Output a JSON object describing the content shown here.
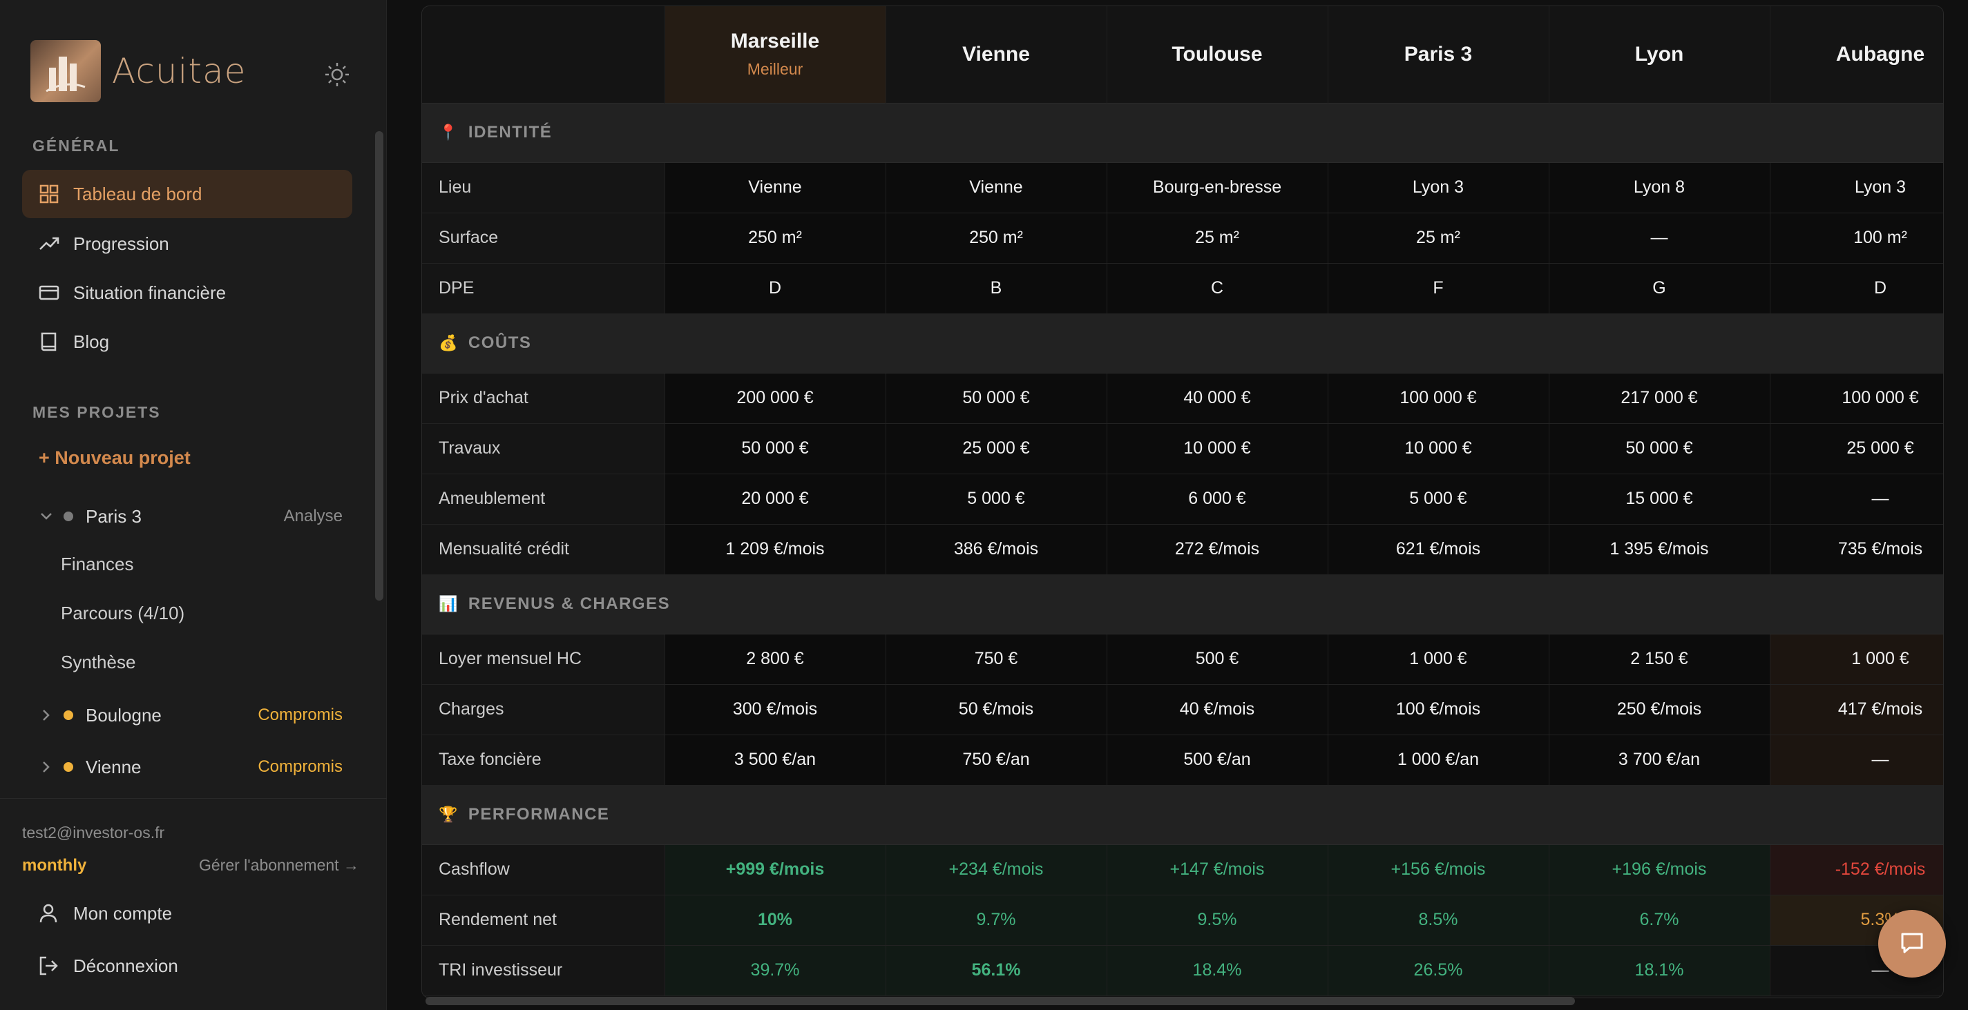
{
  "brand": {
    "name": "Acuitae"
  },
  "sidebar": {
    "general_title": "GÉNÉRAL",
    "nav": [
      {
        "label": "Tableau de bord",
        "icon": "grid-icon",
        "active": true
      },
      {
        "label": "Progression",
        "icon": "trending-up-icon"
      },
      {
        "label": "Situation financière",
        "icon": "credit-card-icon"
      },
      {
        "label": "Blog",
        "icon": "book-icon"
      }
    ],
    "projects_title": "MES PROJETS",
    "new_project": "+ Nouveau projet",
    "projects": [
      {
        "name": "Paris 3",
        "status": "Analyse",
        "dot": "#7a7a7a",
        "status_color": "#8d8d8d",
        "expanded": true,
        "sub": [
          "Finances",
          "Parcours (4/10)",
          "Synthèse"
        ]
      },
      {
        "name": "Boulogne",
        "status": "Compromis",
        "dot": "#f0b23b",
        "status_color": "#f0b23b"
      },
      {
        "name": "Vienne",
        "status": "Compromis",
        "dot": "#f0b23b",
        "status_color": "#f0b23b"
      }
    ],
    "email": "test2@investor-os.fr",
    "plan": "monthly",
    "manage": "Gérer l'abonnement →",
    "account": "Mon compte",
    "logout": "Déconnexion"
  },
  "table": {
    "columns": [
      {
        "name": "Marseille",
        "tag": "Meilleur"
      },
      {
        "name": "Vienne"
      },
      {
        "name": "Toulouse"
      },
      {
        "name": "Paris 3"
      },
      {
        "name": "Lyon"
      },
      {
        "name": "Aubagne"
      }
    ],
    "sections": [
      {
        "emoji": "📍",
        "title": "IDENTITÉ",
        "rows": [
          {
            "label": "Lieu",
            "values": [
              "Vienne",
              "Vienne",
              "Bourg-en-bresse",
              "Lyon 3",
              "Lyon 8",
              "Lyon 3"
            ]
          },
          {
            "label": "Surface",
            "values": [
              "250 m²",
              "250 m²",
              "25 m²",
              "25 m²",
              "—",
              "100 m²"
            ]
          },
          {
            "label": "DPE",
            "values": [
              "D",
              "B",
              "C",
              "F",
              "G",
              "D"
            ]
          }
        ]
      },
      {
        "emoji": "💰",
        "title": "COÛTS",
        "rows": [
          {
            "label": "Prix d'achat",
            "values": [
              "200 000 €",
              "50 000 €",
              "40 000 €",
              "100 000 €",
              "217 000 €",
              "100 000 €"
            ]
          },
          {
            "label": "Travaux",
            "values": [
              "50 000 €",
              "25 000 €",
              "10 000 €",
              "10 000 €",
              "50 000 €",
              "25 000 €"
            ]
          },
          {
            "label": "Ameublement",
            "values": [
              "20 000 €",
              "5 000 €",
              "6 000 €",
              "5 000 €",
              "15 000 €",
              "—"
            ]
          },
          {
            "label": "Mensualité crédit",
            "values": [
              "1 209 €/mois",
              "386 €/mois",
              "272 €/mois",
              "621 €/mois",
              "1 395 €/mois",
              "735 €/mois"
            ]
          }
        ]
      },
      {
        "emoji": "📊",
        "title": "REVENUS & CHARGES",
        "rows": [
          {
            "label": "Loyer mensuel HC",
            "values": [
              "2 800 €",
              "750 €",
              "500 €",
              "1 000 €",
              "2 150 €",
              "1 000 €"
            ],
            "tint_last": true
          },
          {
            "label": "Charges",
            "values": [
              "300 €/mois",
              "50 €/mois",
              "40 €/mois",
              "100 €/mois",
              "250 €/mois",
              "417 €/mois"
            ],
            "tint_last": true
          },
          {
            "label": "Taxe foncière",
            "values": [
              "3 500 €/an",
              "750 €/an",
              "500 €/an",
              "1 000 €/an",
              "3 700 €/an",
              "—"
            ],
            "tint_last": true
          }
        ]
      },
      {
        "emoji": "🏆",
        "title": "PERFORMANCE",
        "perf": true,
        "rows": [
          {
            "label": "Cashflow",
            "values": [
              "+999 €/mois",
              "+234 €/mois",
              "+147 €/mois",
              "+156 €/mois",
              "+196 €/mois",
              "-152 €/mois"
            ],
            "styles": [
              "strong",
              "",
              "",
              "",
              "",
              "neg"
            ]
          },
          {
            "label": "Rendement net",
            "values": [
              "10%",
              "9.7%",
              "9.5%",
              "8.5%",
              "6.7%",
              "5.3%"
            ],
            "styles": [
              "strong",
              "",
              "",
              "",
              "",
              "warn"
            ]
          },
          {
            "label": "TRI investisseur",
            "values": [
              "39.7%",
              "56.1%",
              "18.4%",
              "26.5%",
              "18.1%",
              "—"
            ],
            "styles": [
              "",
              "strong",
              "",
              "",
              "",
              "none"
            ]
          }
        ]
      }
    ]
  }
}
